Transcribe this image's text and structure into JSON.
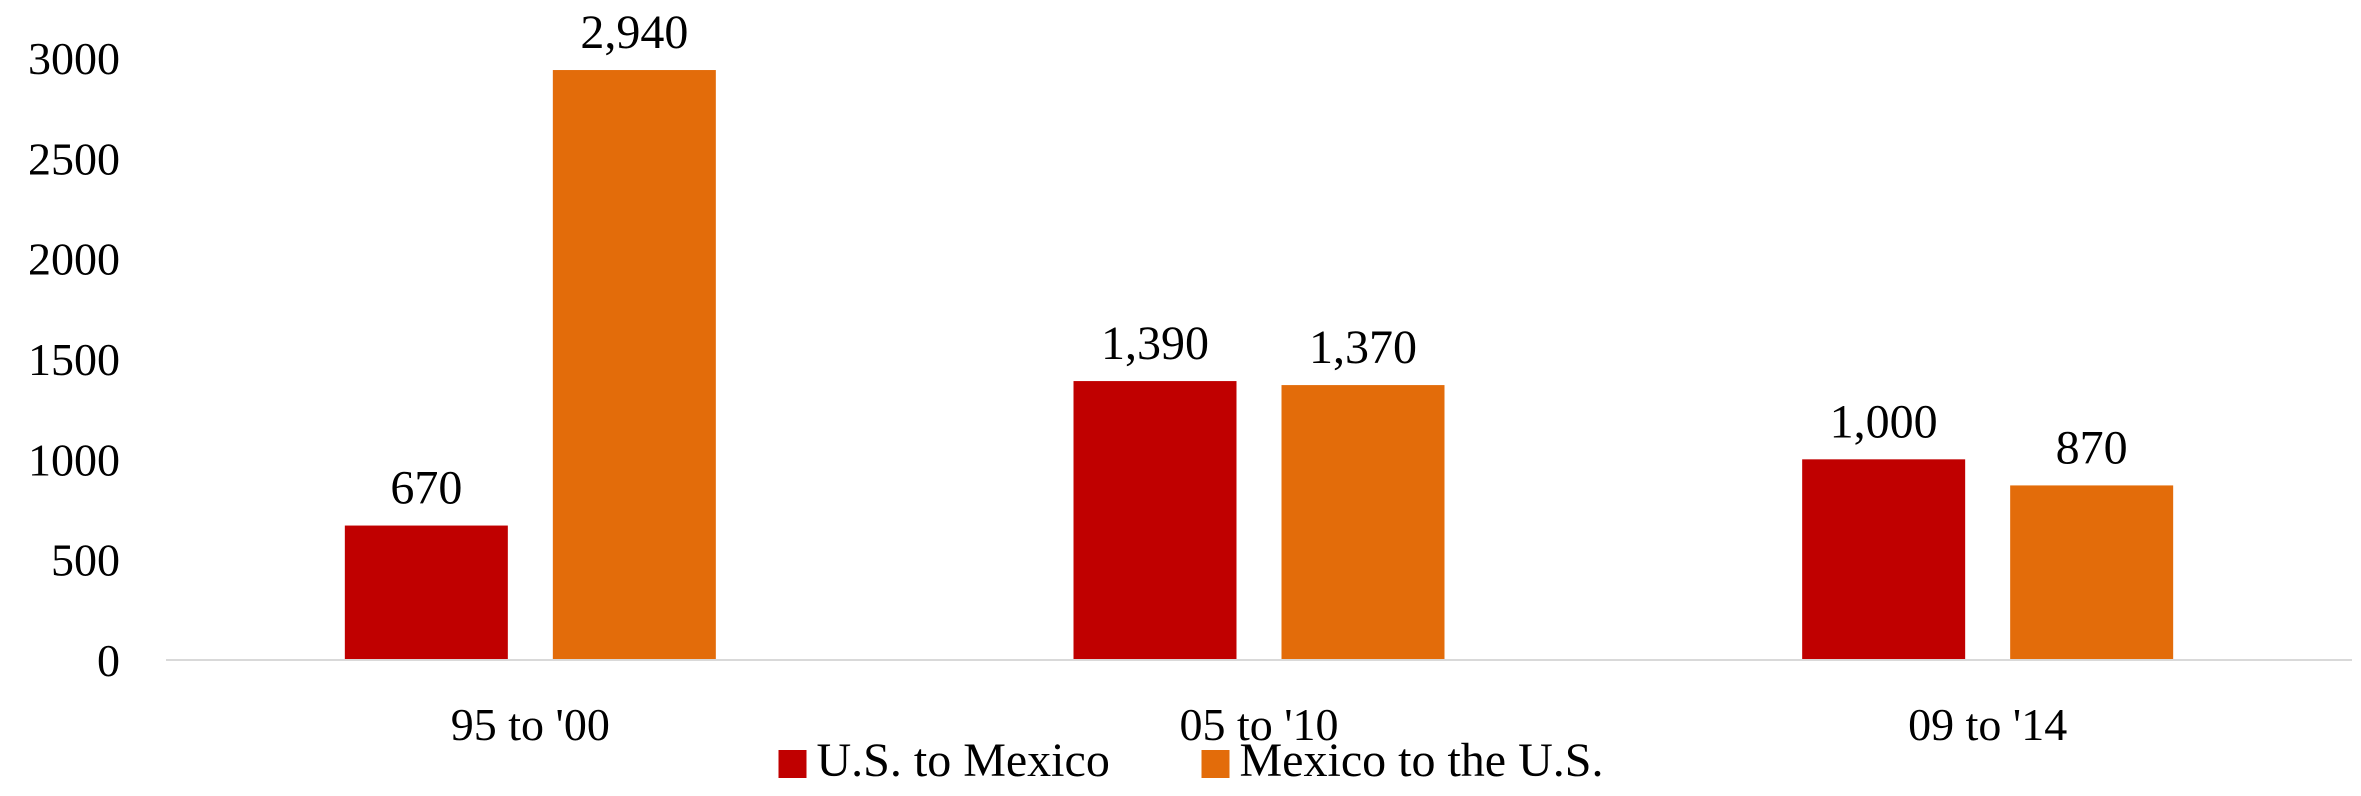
{
  "chart_data": {
    "type": "bar",
    "title": "",
    "xlabel": "",
    "ylabel": "",
    "categories": [
      "95 to '00",
      "05 to '10",
      "09 to '14"
    ],
    "series": [
      {
        "name": "U.S. to Mexico",
        "color": "#C00000",
        "values": [
          670,
          1390,
          1000
        ],
        "labels": [
          "670",
          "1,390",
          "1,000"
        ]
      },
      {
        "name": "Mexico to the U.S.",
        "color": "#E36C0A",
        "values": [
          2940,
          1370,
          870
        ],
        "labels": [
          "2,940",
          "1,370",
          "870"
        ]
      }
    ],
    "ylim": [
      0,
      3000
    ],
    "yticks": [
      0,
      500,
      1000,
      1500,
      2000,
      2500,
      3000
    ],
    "ytick_labels": [
      "0",
      "500",
      "1000",
      "1500",
      "2000",
      "2500",
      "3000"
    ],
    "grid": false,
    "legend": "bottom-center",
    "axis_color": "#D9D9D9"
  }
}
